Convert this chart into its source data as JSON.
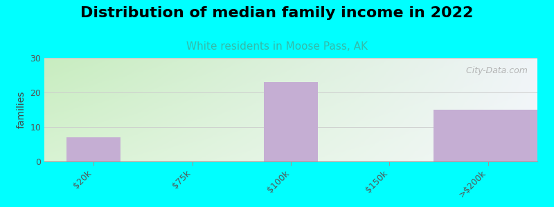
{
  "title": "Distribution of median family income in 2022",
  "subtitle": "White residents in Moose Pass, AK",
  "categories": [
    "$20k",
    "$75k",
    "$100k",
    "$150k",
    ">$200k"
  ],
  "values": [
    7,
    0,
    23,
    0,
    15
  ],
  "bar_color": "#c5aed3",
  "ylabel": "families",
  "ylim": [
    0,
    30
  ],
  "yticks": [
    0,
    10,
    20,
    30
  ],
  "background_color": "#00ffff",
  "plot_bg_color_left": "#c8edc0",
  "plot_bg_color_right": "#f0f4f8",
  "title_fontsize": 16,
  "subtitle_fontsize": 11,
  "subtitle_color": "#33bbaa",
  "watermark": "  City-Data.com",
  "grid_color": "#cccccc",
  "tick_label_fontsize": 9,
  "ylabel_fontsize": 10
}
